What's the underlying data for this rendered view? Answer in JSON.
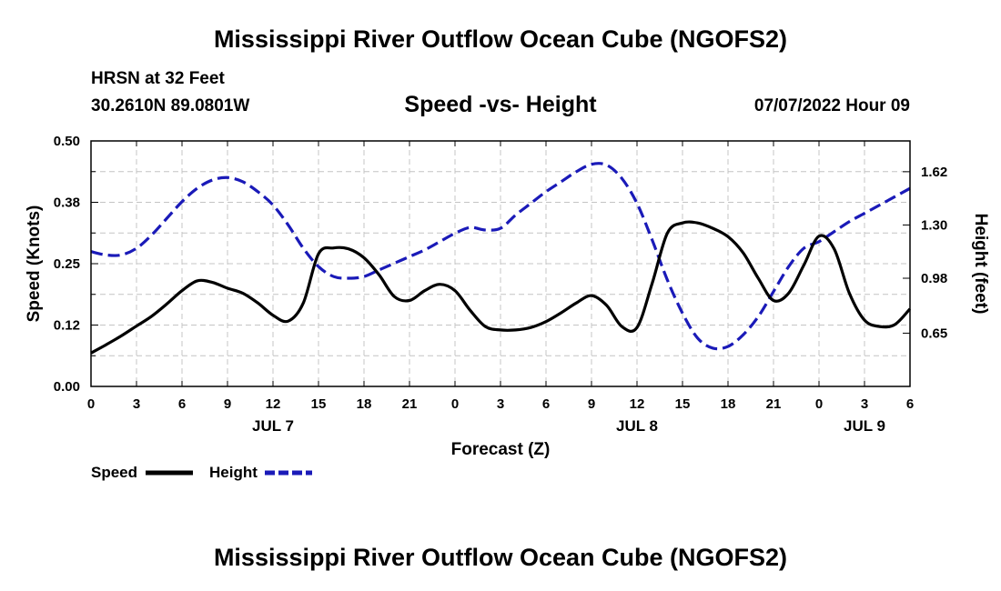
{
  "header": {
    "title": "Mississippi River Outflow Ocean Cube (NGOFS2)",
    "station": "HRSN at 32 Feet",
    "coords": "30.2610N  89.0801W",
    "datetime": "07/07/2022 Hour 09"
  },
  "footer": {
    "title": "Mississippi River Outflow Ocean Cube (NGOFS2)"
  },
  "chart_data": {
    "type": "line",
    "title": "Speed -vs- Height",
    "xlabel": "Forecast (Z)",
    "ylabel_left": "Speed (Knots)",
    "ylabel_right": "Height (feet)",
    "x_range_hours": [
      0,
      54
    ],
    "x_tick_hours": [
      0,
      3,
      6,
      9,
      12,
      15,
      18,
      21,
      24,
      27,
      30,
      33,
      36,
      39,
      42,
      45,
      48,
      51,
      54
    ],
    "x_tick_labels": [
      "0",
      "3",
      "6",
      "9",
      "12",
      "15",
      "18",
      "21",
      "0",
      "3",
      "6",
      "9",
      "12",
      "15",
      "18",
      "21",
      "0",
      "3",
      "6"
    ],
    "day_labels": [
      {
        "hour": 12,
        "label": "JUL 7"
      },
      {
        "hour": 36,
        "label": "JUL 8"
      },
      {
        "hour": 51,
        "label": "JUL 9"
      }
    ],
    "ylim_left": [
      0,
      0.5
    ],
    "y_left_ticks": [
      0,
      0.125,
      0.25,
      0.375,
      0.5
    ],
    "y_left_tick_labels": [
      "0.00",
      "0.12",
      "0.25",
      "0.38",
      "0.50"
    ],
    "ylim_right": [
      0.33,
      1.805
    ],
    "y_right_ticks": [
      0.65,
      0.98,
      1.3,
      1.62
    ],
    "y_right_tick_labels": [
      "0.65",
      "0.98",
      "1.30",
      "1.62"
    ],
    "grid": true,
    "legend": "bottom-left",
    "series": [
      {
        "name": "Speed",
        "axis": "left",
        "color": "#000000",
        "style": "solid",
        "x": [
          0,
          1,
          2,
          3,
          4,
          5,
          6,
          7,
          8,
          9,
          10,
          11,
          12,
          13,
          14,
          15,
          16,
          17,
          18,
          19,
          20,
          21,
          22,
          23,
          24,
          25,
          26,
          27,
          28,
          29,
          30,
          31,
          32,
          33,
          34,
          35,
          36,
          37,
          38,
          39,
          40,
          41,
          42,
          43,
          44,
          45,
          46,
          47,
          48,
          49,
          50,
          51,
          52,
          53,
          54
        ],
        "values": [
          0.068,
          0.085,
          0.103,
          0.123,
          0.143,
          0.168,
          0.195,
          0.215,
          0.212,
          0.2,
          0.19,
          0.17,
          0.145,
          0.133,
          0.17,
          0.27,
          0.282,
          0.28,
          0.262,
          0.227,
          0.183,
          0.175,
          0.195,
          0.208,
          0.195,
          0.155,
          0.122,
          0.115,
          0.115,
          0.12,
          0.132,
          0.15,
          0.17,
          0.185,
          0.165,
          0.122,
          0.12,
          0.21,
          0.312,
          0.333,
          0.333,
          0.322,
          0.305,
          0.272,
          0.22,
          0.175,
          0.19,
          0.247,
          0.306,
          0.28,
          0.19,
          0.135,
          0.122,
          0.126,
          0.158
        ]
      },
      {
        "name": "Height",
        "axis": "right",
        "color": "#1a1ab8",
        "style": "dashed",
        "x": [
          0,
          1,
          2,
          3,
          4,
          5,
          6,
          7,
          8,
          9,
          10,
          11,
          12,
          13,
          14,
          15,
          16,
          17,
          18,
          19,
          20,
          21,
          22,
          23,
          24,
          25,
          26,
          27,
          28,
          29,
          30,
          31,
          32,
          33,
          34,
          35,
          36,
          37,
          38,
          39,
          40,
          41,
          42,
          43,
          44,
          45,
          46,
          47,
          48,
          49,
          50,
          51,
          52,
          53,
          54
        ],
        "values": [
          1.14,
          1.12,
          1.12,
          1.16,
          1.24,
          1.34,
          1.44,
          1.52,
          1.57,
          1.585,
          1.56,
          1.5,
          1.42,
          1.3,
          1.16,
          1.05,
          0.99,
          0.98,
          0.99,
          1.03,
          1.07,
          1.11,
          1.15,
          1.2,
          1.25,
          1.285,
          1.27,
          1.28,
          1.36,
          1.43,
          1.5,
          1.56,
          1.62,
          1.665,
          1.66,
          1.58,
          1.43,
          1.21,
          0.97,
          0.77,
          0.62,
          0.56,
          0.57,
          0.64,
          0.75,
          0.9,
          1.05,
          1.16,
          1.2,
          1.26,
          1.32,
          1.37,
          1.42,
          1.47,
          1.52
        ]
      }
    ]
  }
}
